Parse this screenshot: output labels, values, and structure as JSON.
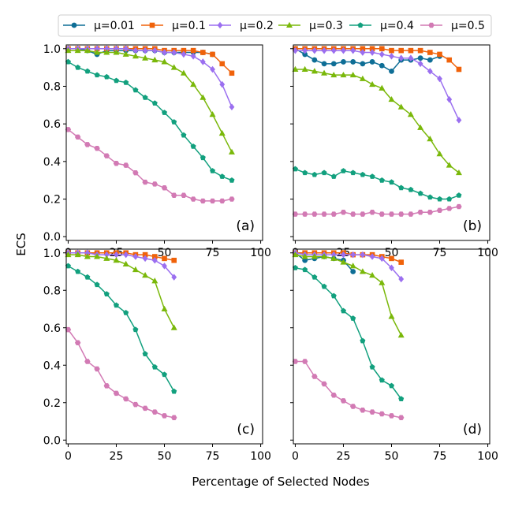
{
  "figure": {
    "ylabel": "ECS",
    "xlabel": "Percentage of Selected Nodes"
  },
  "legend": {
    "entries": [
      {
        "label": "μ=0.01",
        "color": "#0e6e96",
        "marker": "circle"
      },
      {
        "label": "μ=0.1",
        "color": "#f0620a",
        "marker": "square"
      },
      {
        "label": "μ=0.2",
        "color": "#9b6ff0",
        "marker": "diamond"
      },
      {
        "label": "μ=0.3",
        "color": "#7ab80a",
        "marker": "triangle"
      },
      {
        "label": "μ=0.4",
        "color": "#12a07e",
        "marker": "pentagon"
      },
      {
        "label": "μ=0.5",
        "color": "#d27ab4",
        "marker": "hexagon"
      }
    ]
  },
  "chart_data": [
    {
      "type": "line",
      "panel_label": "(a)",
      "xlim": [
        -1,
        101
      ],
      "ylim": [
        -0.02,
        1.02
      ],
      "xticks": [
        "0",
        "25",
        "50",
        "75",
        "100"
      ],
      "yticks": [
        "0.0",
        "0.2",
        "0.4",
        "0.6",
        "0.8",
        "1.0"
      ],
      "series": [
        {
          "name": "μ=0.01",
          "x": [
            0,
            5,
            10,
            15,
            20,
            25,
            30,
            35,
            40,
            45,
            50,
            55,
            60,
            65,
            70,
            75
          ],
          "values": [
            1.0,
            1.0,
            0.99,
            0.97,
            0.99,
            0.99,
            0.99,
            0.99,
            0.99,
            0.99,
            0.98,
            0.98,
            0.98,
            0.98,
            0.98,
            0.97
          ]
        },
        {
          "name": "μ=0.1",
          "x": [
            0,
            5,
            10,
            15,
            20,
            25,
            30,
            35,
            40,
            45,
            50,
            55,
            60,
            65,
            70,
            75,
            80,
            85
          ],
          "values": [
            1.0,
            1.0,
            1.0,
            1.0,
            1.0,
            1.0,
            1.0,
            1.0,
            1.0,
            1.0,
            0.99,
            0.99,
            0.99,
            0.99,
            0.98,
            0.97,
            0.92,
            0.87
          ]
        },
        {
          "name": "μ=0.2",
          "x": [
            0,
            5,
            10,
            15,
            20,
            25,
            30,
            35,
            40,
            45,
            50,
            55,
            60,
            65,
            70,
            75,
            80,
            85
          ],
          "values": [
            1.0,
            1.0,
            1.0,
            1.0,
            1.0,
            1.0,
            1.0,
            0.99,
            0.99,
            0.99,
            0.98,
            0.98,
            0.97,
            0.96,
            0.93,
            0.89,
            0.81,
            0.69
          ]
        },
        {
          "name": "μ=0.3",
          "x": [
            0,
            5,
            10,
            15,
            20,
            25,
            30,
            35,
            40,
            45,
            50,
            55,
            60,
            65,
            70,
            75,
            80,
            85
          ],
          "values": [
            0.99,
            0.99,
            0.99,
            0.98,
            0.98,
            0.98,
            0.97,
            0.96,
            0.95,
            0.94,
            0.93,
            0.9,
            0.87,
            0.81,
            0.74,
            0.65,
            0.55,
            0.45
          ]
        },
        {
          "name": "μ=0.4",
          "x": [
            0,
            5,
            10,
            15,
            20,
            25,
            30,
            35,
            40,
            45,
            50,
            55,
            60,
            65,
            70,
            75,
            80,
            85
          ],
          "values": [
            0.93,
            0.9,
            0.88,
            0.86,
            0.85,
            0.83,
            0.82,
            0.78,
            0.74,
            0.71,
            0.66,
            0.61,
            0.54,
            0.48,
            0.42,
            0.35,
            0.32,
            0.3
          ]
        },
        {
          "name": "μ=0.5",
          "x": [
            0,
            5,
            10,
            15,
            20,
            25,
            30,
            35,
            40,
            45,
            50,
            55,
            60,
            65,
            70,
            75,
            80,
            85
          ],
          "values": [
            0.57,
            0.53,
            0.49,
            0.47,
            0.43,
            0.39,
            0.38,
            0.34,
            0.29,
            0.28,
            0.26,
            0.22,
            0.22,
            0.2,
            0.19,
            0.19,
            0.19,
            0.2
          ]
        }
      ]
    },
    {
      "type": "line",
      "panel_label": "(b)",
      "xlim": [
        -1,
        101
      ],
      "ylim": [
        -0.02,
        1.02
      ],
      "xticks": [
        "0",
        "25",
        "50",
        "75",
        "100"
      ],
      "yticks": [
        "0.0",
        "0.2",
        "0.4",
        "0.6",
        "0.8",
        "1.0"
      ],
      "series": [
        {
          "name": "μ=0.01",
          "x": [
            0,
            5,
            10,
            15,
            20,
            25,
            30,
            35,
            40,
            45,
            50,
            55,
            60,
            65,
            70,
            75
          ],
          "values": [
            1.0,
            0.97,
            0.94,
            0.92,
            0.92,
            0.93,
            0.93,
            0.92,
            0.93,
            0.91,
            0.88,
            0.94,
            0.94,
            0.95,
            0.94,
            0.96
          ]
        },
        {
          "name": "μ=0.1",
          "x": [
            0,
            5,
            10,
            15,
            20,
            25,
            30,
            35,
            40,
            45,
            50,
            55,
            60,
            65,
            70,
            75,
            80,
            85
          ],
          "values": [
            1.0,
            1.0,
            1.0,
            1.0,
            1.0,
            1.0,
            1.0,
            1.0,
            1.0,
            1.0,
            0.99,
            0.99,
            0.99,
            0.99,
            0.98,
            0.97,
            0.94,
            0.89
          ]
        },
        {
          "name": "μ=0.2",
          "x": [
            0,
            5,
            10,
            15,
            20,
            25,
            30,
            35,
            40,
            45,
            50,
            55,
            60,
            65,
            70,
            75,
            80,
            85
          ],
          "values": [
            0.99,
            0.99,
            0.99,
            0.99,
            0.99,
            0.99,
            0.99,
            0.98,
            0.98,
            0.97,
            0.96,
            0.95,
            0.95,
            0.92,
            0.88,
            0.84,
            0.73,
            0.62
          ]
        },
        {
          "name": "μ=0.3",
          "x": [
            0,
            5,
            10,
            15,
            20,
            25,
            30,
            35,
            40,
            45,
            50,
            55,
            60,
            65,
            70,
            75,
            80,
            85
          ],
          "values": [
            0.89,
            0.89,
            0.88,
            0.87,
            0.86,
            0.86,
            0.86,
            0.84,
            0.81,
            0.79,
            0.73,
            0.69,
            0.65,
            0.58,
            0.52,
            0.44,
            0.38,
            0.34
          ]
        },
        {
          "name": "μ=0.4",
          "x": [
            0,
            5,
            10,
            15,
            20,
            25,
            30,
            35,
            40,
            45,
            50,
            55,
            60,
            65,
            70,
            75,
            80,
            85
          ],
          "values": [
            0.36,
            0.34,
            0.33,
            0.34,
            0.32,
            0.35,
            0.34,
            0.33,
            0.32,
            0.3,
            0.29,
            0.26,
            0.25,
            0.23,
            0.21,
            0.2,
            0.2,
            0.22
          ]
        },
        {
          "name": "μ=0.5",
          "x": [
            0,
            5,
            10,
            15,
            20,
            25,
            30,
            35,
            40,
            45,
            50,
            55,
            60,
            65,
            70,
            75,
            80,
            85
          ],
          "values": [
            0.12,
            0.12,
            0.12,
            0.12,
            0.12,
            0.13,
            0.12,
            0.12,
            0.13,
            0.12,
            0.12,
            0.12,
            0.12,
            0.13,
            0.13,
            0.14,
            0.15,
            0.16
          ]
        }
      ]
    },
    {
      "type": "line",
      "panel_label": "(c)",
      "xlim": [
        -1,
        101
      ],
      "ylim": [
        -0.02,
        1.02
      ],
      "xticks": [
        "0",
        "25",
        "50",
        "75",
        "100"
      ],
      "yticks": [
        "0.0",
        "0.2",
        "0.4",
        "0.6",
        "0.8",
        "1.0"
      ],
      "series": [
        {
          "name": "μ=0.01",
          "x": [
            0,
            5,
            10,
            15,
            20,
            25
          ],
          "values": [
            1.0,
            1.0,
            1.0,
            1.0,
            1.0,
            1.0
          ]
        },
        {
          "name": "μ=0.1",
          "x": [
            0,
            5,
            10,
            15,
            20,
            25,
            30,
            35,
            40,
            45,
            50,
            55
          ],
          "values": [
            1.0,
            1.0,
            1.0,
            1.0,
            1.0,
            1.0,
            1.0,
            0.99,
            0.99,
            0.98,
            0.97,
            0.96
          ]
        },
        {
          "name": "μ=0.2",
          "x": [
            0,
            5,
            10,
            15,
            20,
            25,
            30,
            35,
            40,
            45,
            50,
            55
          ],
          "values": [
            1.0,
            1.0,
            1.0,
            0.99,
            0.99,
            0.99,
            0.99,
            0.98,
            0.97,
            0.96,
            0.93,
            0.87
          ]
        },
        {
          "name": "μ=0.3",
          "x": [
            0,
            5,
            10,
            15,
            20,
            25,
            30,
            35,
            40,
            45,
            50,
            55
          ],
          "values": [
            0.99,
            0.99,
            0.98,
            0.98,
            0.97,
            0.96,
            0.94,
            0.91,
            0.88,
            0.85,
            0.7,
            0.6
          ]
        },
        {
          "name": "μ=0.4",
          "x": [
            0,
            5,
            10,
            15,
            20,
            25,
            30,
            35,
            40,
            45,
            50,
            55
          ],
          "values": [
            0.93,
            0.9,
            0.87,
            0.83,
            0.78,
            0.72,
            0.68,
            0.59,
            0.46,
            0.39,
            0.35,
            0.26
          ]
        },
        {
          "name": "μ=0.5",
          "x": [
            0,
            5,
            10,
            15,
            20,
            25,
            30,
            35,
            40,
            45,
            50,
            55
          ],
          "values": [
            0.59,
            0.52,
            0.42,
            0.38,
            0.29,
            0.25,
            0.22,
            0.19,
            0.17,
            0.15,
            0.13,
            0.12
          ]
        }
      ]
    },
    {
      "type": "line",
      "panel_label": "(d)",
      "xlim": [
        -1,
        101
      ],
      "ylim": [
        -0.02,
        1.02
      ],
      "xticks": [
        "0",
        "25",
        "50",
        "75",
        "100"
      ],
      "yticks": [
        "0.0",
        "0.2",
        "0.4",
        "0.6",
        "0.8",
        "1.0"
      ],
      "series": [
        {
          "name": "μ=0.01",
          "x": [
            0,
            5,
            10,
            15,
            20,
            25,
            30
          ],
          "values": [
            1.0,
            0.96,
            0.97,
            0.98,
            0.97,
            0.96,
            0.9
          ]
        },
        {
          "name": "μ=0.1",
          "x": [
            0,
            5,
            10,
            15,
            20,
            25,
            30,
            35,
            40,
            45,
            50,
            55
          ],
          "values": [
            1.0,
            1.0,
            1.0,
            1.0,
            1.0,
            1.0,
            0.99,
            0.99,
            0.99,
            0.98,
            0.97,
            0.95
          ]
        },
        {
          "name": "μ=0.2",
          "x": [
            0,
            5,
            10,
            15,
            20,
            25,
            30,
            35,
            40,
            45,
            50,
            55
          ],
          "values": [
            1.0,
            0.99,
            0.99,
            0.99,
            0.99,
            0.99,
            0.99,
            0.99,
            0.98,
            0.97,
            0.92,
            0.86
          ]
        },
        {
          "name": "μ=0.3",
          "x": [
            0,
            5,
            10,
            15,
            20,
            25,
            30,
            35,
            40,
            45,
            50,
            55
          ],
          "values": [
            0.99,
            0.98,
            0.98,
            0.98,
            0.97,
            0.95,
            0.93,
            0.9,
            0.88,
            0.84,
            0.66,
            0.56
          ]
        },
        {
          "name": "μ=0.4",
          "x": [
            0,
            5,
            10,
            15,
            20,
            25,
            30,
            35,
            40,
            45,
            50,
            55
          ],
          "values": [
            0.92,
            0.91,
            0.87,
            0.82,
            0.77,
            0.69,
            0.65,
            0.53,
            0.39,
            0.32,
            0.29,
            0.22
          ]
        },
        {
          "name": "μ=0.5",
          "x": [
            0,
            5,
            10,
            15,
            20,
            25,
            30,
            35,
            40,
            45,
            50,
            55
          ],
          "values": [
            0.42,
            0.42,
            0.34,
            0.3,
            0.24,
            0.21,
            0.18,
            0.16,
            0.15,
            0.14,
            0.13,
            0.12
          ]
        }
      ]
    }
  ]
}
